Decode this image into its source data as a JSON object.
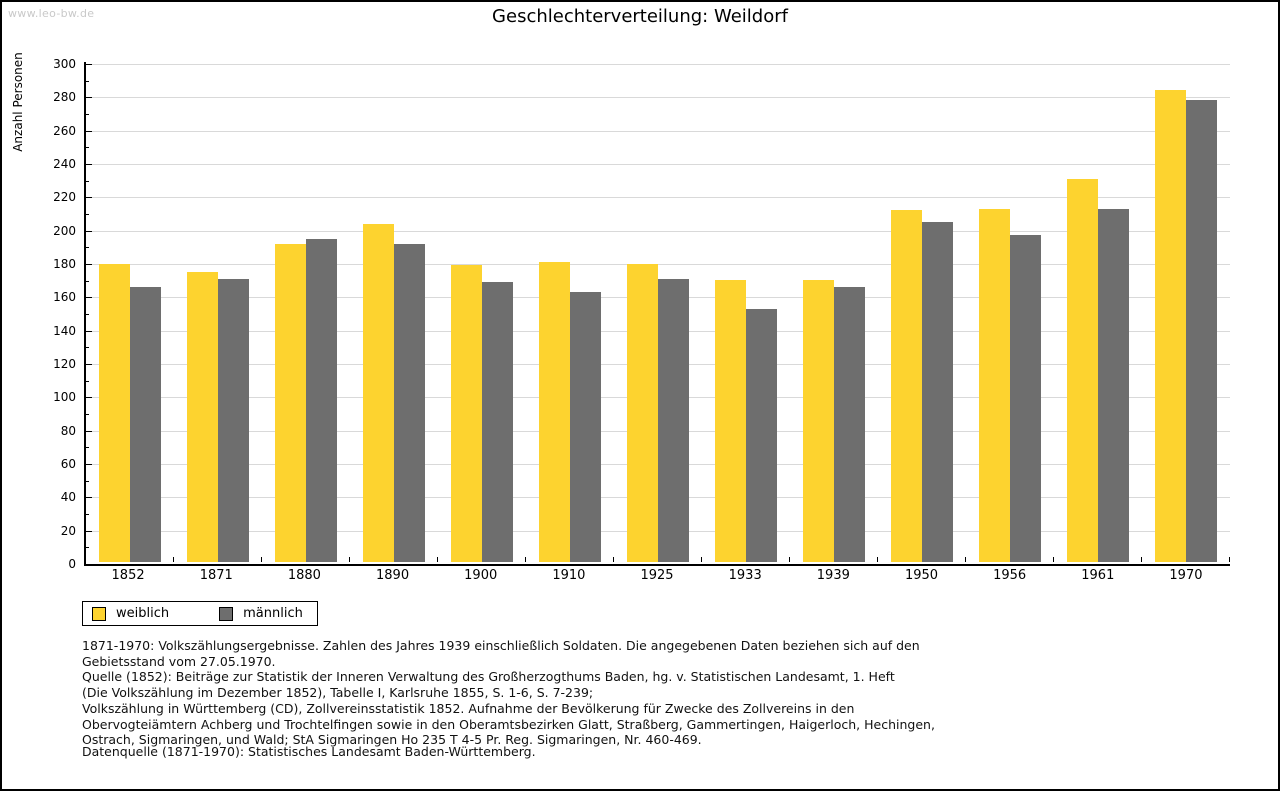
{
  "watermark": "www.leo-bw.de",
  "chart_data": {
    "type": "bar",
    "title": "Geschlechterverteilung: Weildorf",
    "xlabel": "",
    "ylabel": "Anzahl Personen",
    "ylim": [
      0,
      300
    ],
    "ytick_step": 20,
    "ytick_minor_step": 10,
    "grid": true,
    "legend_position": "bottom-left",
    "categories": [
      "1852",
      "1871",
      "1880",
      "1890",
      "1900",
      "1910",
      "1925",
      "1933",
      "1939",
      "1950",
      "1956",
      "1961",
      "1970"
    ],
    "series": [
      {
        "name": "weiblich",
        "color": "#FDD32F",
        "values": [
          179,
          174,
          191,
          203,
          178,
          180,
          179,
          169,
          169,
          211,
          212,
          230,
          283
        ]
      },
      {
        "name": "männlich",
        "color": "#6E6E6E",
        "values": [
          165,
          170,
          194,
          191,
          168,
          162,
          170,
          152,
          165,
          204,
          196,
          212,
          277
        ]
      }
    ]
  },
  "colors": {
    "weiblich": "#FDD32F",
    "maennlich": "#6E6E6E",
    "gridline": "#d9d9d9",
    "axis": "#000000",
    "watermark": "#c9c9c9",
    "background": "#ffffff"
  },
  "footnotes": {
    "lines": [
      "1871-1970: Volkszählungsergebnisse. Zahlen des Jahres 1939 einschließlich Soldaten. Die angegebenen Daten beziehen sich auf den",
      "Gebietsstand vom 27.05.1970.",
      "Quelle (1852): Beiträge zur Statistik der Inneren Verwaltung des Großherzogthums Baden, hg. v. Statistischen Landesamt, 1. Heft",
      "(Die Volkszählung im Dezember 1852), Tabelle I, Karlsruhe 1855, S. 1-6, S. 7-239;",
      "Volkszählung in Württemberg (CD), Zollvereinsstatistik 1852. Aufnahme der Bevölkerung für Zwecke des Zollvereins in den",
      "Obervogteiämtern Achberg und Trochtelfingen sowie in den Oberamtsbezirken Glatt, Straßberg, Gammertingen, Haigerloch, Hechingen,",
      "Ostrach, Sigmaringen, und Wald; StA Sigmaringen Ho 235 T 4-5 Pr. Reg. Sigmaringen, Nr. 460-469."
    ],
    "datasource": "Datenquelle (1871-1970): Statistisches Landesamt Baden-Württemberg."
  }
}
